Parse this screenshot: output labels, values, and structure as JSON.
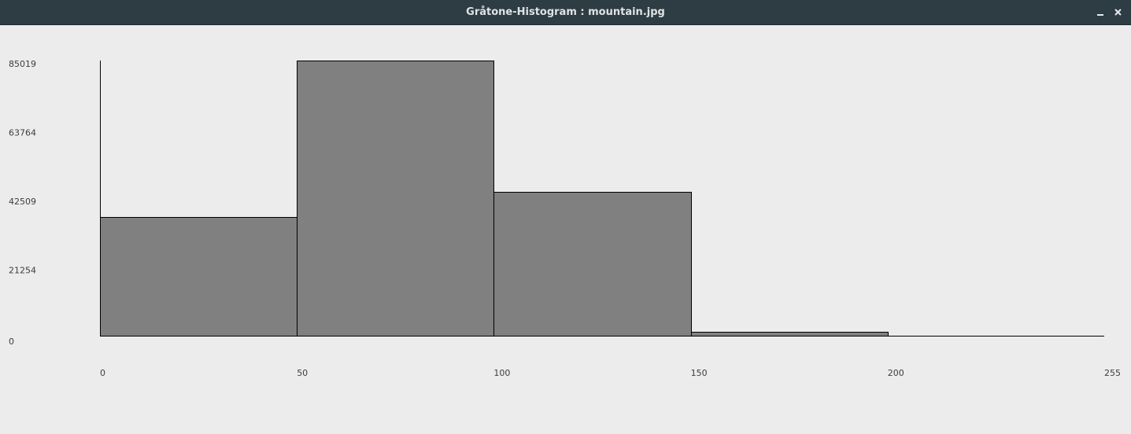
{
  "window": {
    "title": "Gråtone-Histogram : mountain.jpg",
    "controls": [
      {
        "name": "minimize",
        "icon": "minimize-icon"
      },
      {
        "name": "close",
        "icon": "close-icon"
      }
    ]
  },
  "colors": {
    "titlebar": "#2e3c43",
    "background": "#ececec",
    "bar_fill": "#808080",
    "bar_stroke": "#000000"
  },
  "chart_data": {
    "type": "bar",
    "title": "",
    "xlabel": "",
    "ylabel": "",
    "x_ticks": [
      "0",
      "50",
      "100",
      "150",
      "200",
      "255"
    ],
    "y_ticks": [
      "0",
      "21254",
      "42509",
      "63764",
      "85019"
    ],
    "xlim": [
      0,
      255
    ],
    "ylim": [
      0,
      85019
    ],
    "bins": [
      {
        "start": 0,
        "end": 50,
        "value": 36700
      },
      {
        "start": 50,
        "end": 100,
        "value": 85019
      },
      {
        "start": 100,
        "end": 150,
        "value": 44500
      },
      {
        "start": 150,
        "end": 200,
        "value": 1300
      },
      {
        "start": 200,
        "end": 255,
        "value": 0
      }
    ],
    "grid": false,
    "legend": "none"
  }
}
